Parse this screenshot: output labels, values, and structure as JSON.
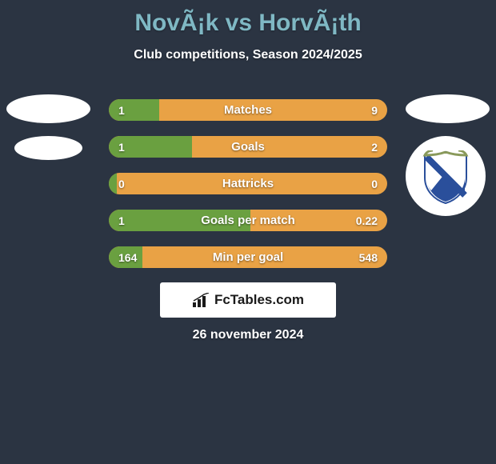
{
  "title": "NovÃ¡k vs HorvÃ¡th",
  "subtitle": "Club competitions, Season 2024/2025",
  "date": "26 november 2024",
  "brand": "FcTables.com",
  "colors": {
    "background": "#2b3442",
    "title": "#7fb8c4",
    "bar_left": "#6aa040",
    "bar_right": "#e9a245",
    "text": "#ffffff"
  },
  "bars": [
    {
      "label": "Matches",
      "left": "1",
      "right": "9",
      "left_pct": 18
    },
    {
      "label": "Goals",
      "left": "1",
      "right": "2",
      "left_pct": 30
    },
    {
      "label": "Hattricks",
      "left": "0",
      "right": "0",
      "left_pct": 3
    },
    {
      "label": "Goals per match",
      "left": "1",
      "right": "0.22",
      "left_pct": 51
    },
    {
      "label": "Min per goal",
      "left": "164",
      "right": "548",
      "left_pct": 12
    }
  ],
  "crest": {
    "stripe1": "#2a4f9b",
    "stripe2": "#ffffff",
    "laurel": "#8a9a5b"
  }
}
